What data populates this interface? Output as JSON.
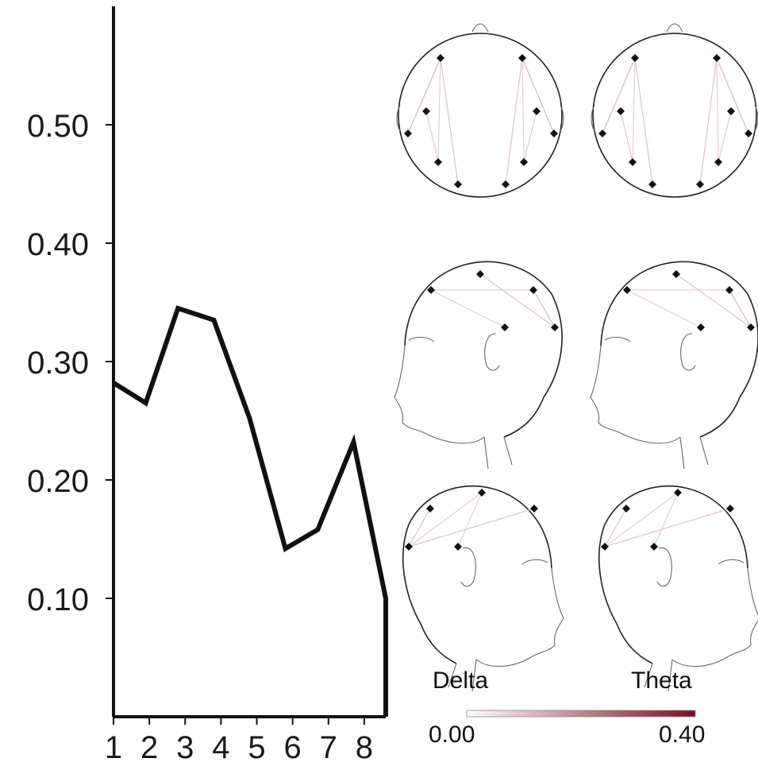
{
  "chart_data": [
    {
      "type": "line",
      "x": [
        1,
        1.9,
        2.8,
        3.8,
        4.8,
        5.8,
        6.7,
        7.7,
        8.6
      ],
      "y": [
        0.282,
        0.265,
        0.345,
        0.335,
        0.252,
        0.142,
        0.158,
        0.232,
        0.1
      ],
      "xticks": [
        "1",
        "2",
        "3",
        "4",
        "5",
        "6",
        "7",
        "8"
      ],
      "yticks": [
        "0.10",
        "0.20",
        "0.30",
        "0.40",
        "0.50"
      ],
      "ylim": [
        0.0,
        0.6
      ],
      "xlim": [
        1,
        8.6
      ],
      "line_color": "#111111",
      "grid": false
    }
  ],
  "topoplots": {
    "band_labels": [
      "Delta",
      "Theta"
    ],
    "views": [
      "top",
      "side-left",
      "side-right"
    ],
    "colorbar": {
      "min_label": "0.00",
      "max_label": "0.40",
      "color_low": "#ffffff",
      "color_high": "#7a1020"
    },
    "connections": {
      "top": [
        {
          "from": "Fp1",
          "to": "O1",
          "strength": 0.1
        },
        {
          "from": "Fp1",
          "to": "T7",
          "strength": 0.12
        },
        {
          "from": "Fp1",
          "to": "P7",
          "strength": 0.08
        },
        {
          "from": "F7",
          "to": "P7",
          "strength": 0.09
        },
        {
          "from": "Fp2",
          "to": "O2",
          "strength": 0.1
        },
        {
          "from": "Fp2",
          "to": "T8",
          "strength": 0.12
        },
        {
          "from": "Fp2",
          "to": "P8",
          "strength": 0.08
        },
        {
          "from": "F8",
          "to": "P8",
          "strength": 0.09
        }
      ],
      "side_left": [
        {
          "from": "Fp",
          "to": "Cz",
          "strength": 0.08
        },
        {
          "from": "Fp",
          "to": "Pz",
          "strength": 0.08
        },
        {
          "from": "Fz",
          "to": "Oz",
          "strength": 0.1
        },
        {
          "from": "Cz",
          "to": "Oz",
          "strength": 0.12
        }
      ],
      "side_right": [
        {
          "from": "Oz",
          "to": "Fz",
          "strength": 0.08
        },
        {
          "from": "Oz",
          "to": "Fp",
          "strength": 0.1
        },
        {
          "from": "Oz",
          "to": "Cz",
          "strength": 0.1
        },
        {
          "from": "Pz",
          "to": "Fz",
          "strength": 0.08
        }
      ]
    }
  }
}
